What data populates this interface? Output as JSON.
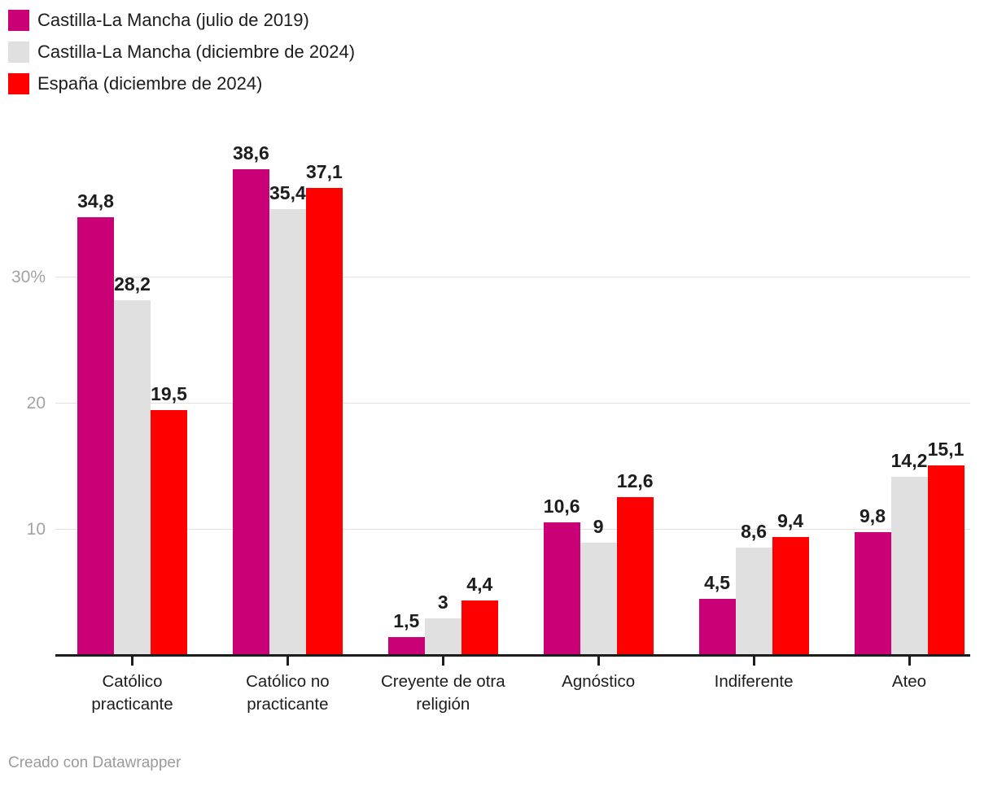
{
  "footer": {
    "credit": "Creado con Datawrapper"
  },
  "chart_data": {
    "type": "bar",
    "title": "",
    "xlabel": "",
    "ylabel": "",
    "categories": [
      "Católico practicante",
      "Católico no practicante",
      "Creyente de otra religión",
      "Agnóstico",
      "Indiferente",
      "Ateo"
    ],
    "series": [
      {
        "name": "Castilla-La Mancha (julio de 2019)",
        "color": "#c90076",
        "values": [
          34.8,
          38.6,
          1.5,
          10.6,
          4.5,
          9.8
        ]
      },
      {
        "name": "Castilla-La Mancha (diciembre de 2024)",
        "color": "#e0e0e0",
        "values": [
          28.2,
          35.4,
          3,
          9,
          8.6,
          14.2
        ]
      },
      {
        "name": "España (diciembre de 2024)",
        "color": "#ff0000",
        "values": [
          19.5,
          37.1,
          4.4,
          12.6,
          9.4,
          15.1
        ]
      }
    ],
    "y_ticks": [
      {
        "value": 10,
        "label": "10"
      },
      {
        "value": 20,
        "label": "20"
      },
      {
        "value": 30,
        "label": "30%"
      }
    ],
    "ylim": [
      0,
      41.7
    ],
    "grid": "horizontal",
    "legend_position": "top-left",
    "decimal_separator": ","
  }
}
